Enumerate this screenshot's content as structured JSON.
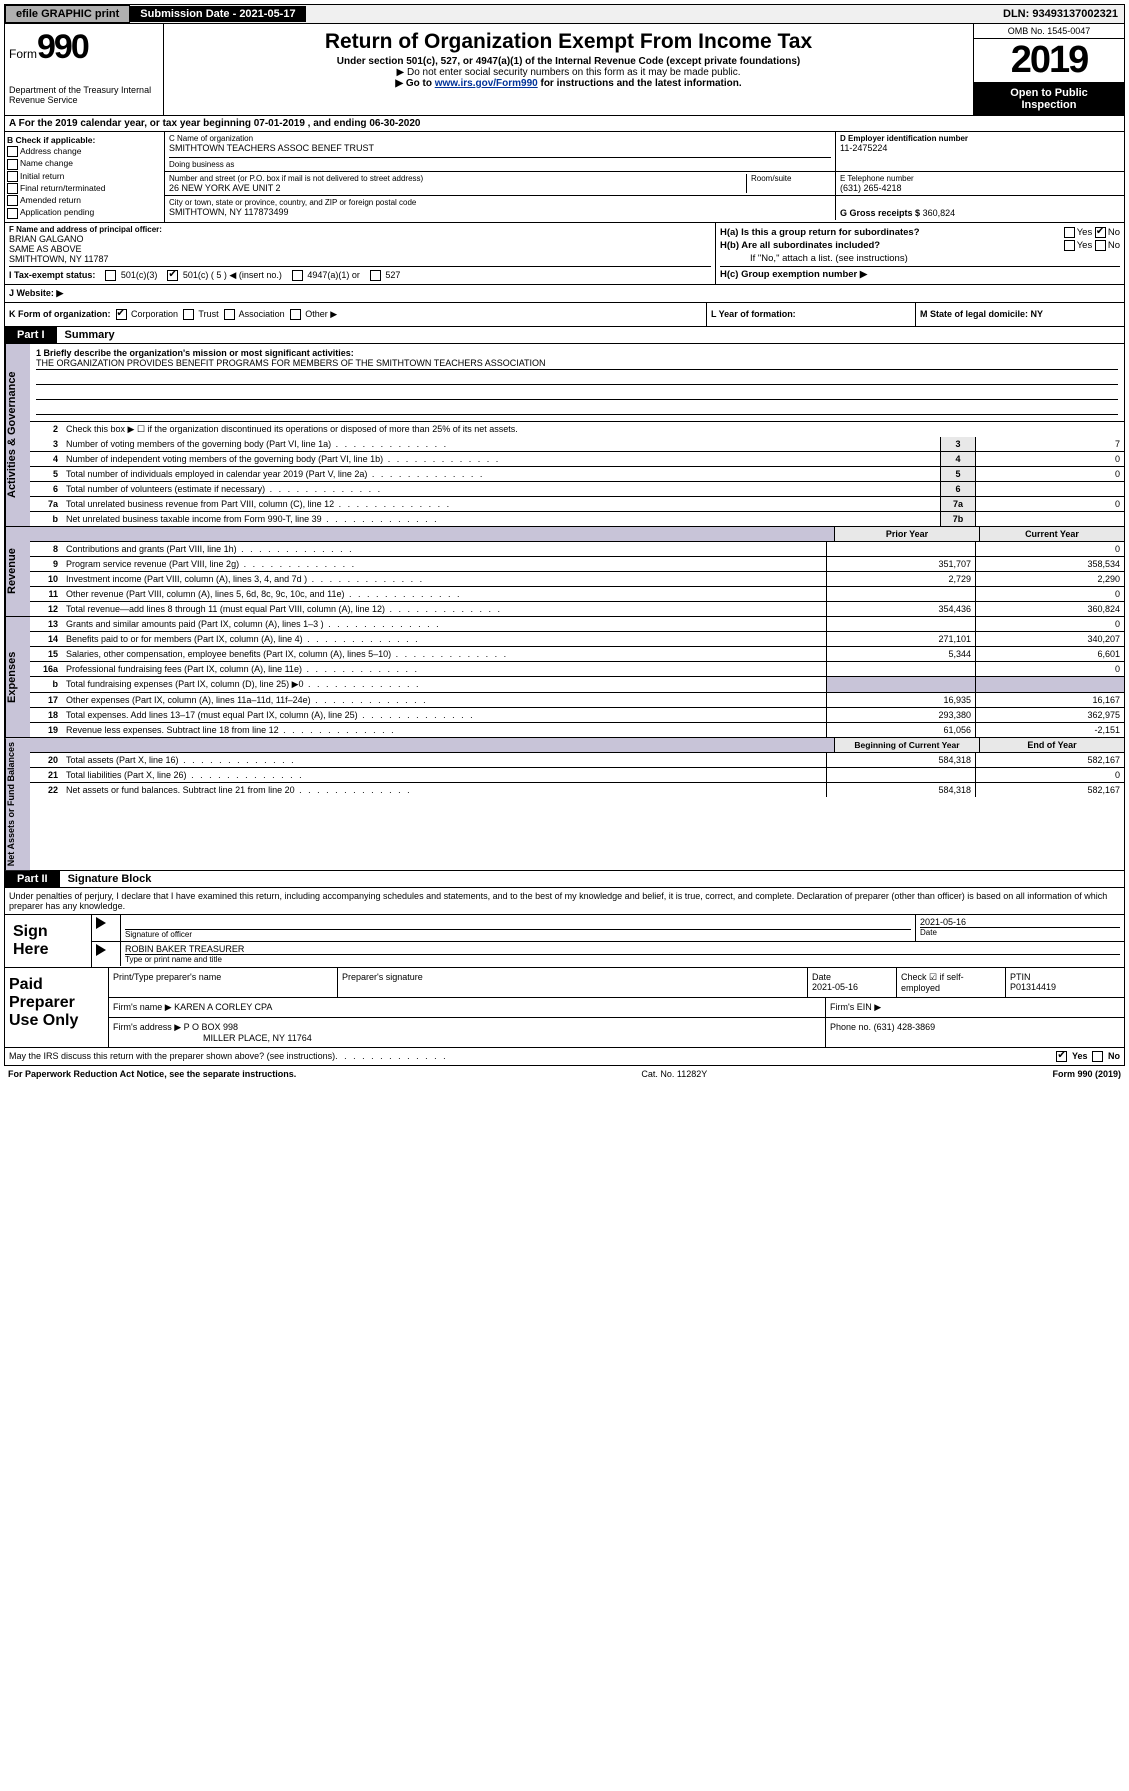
{
  "topbar": {
    "efile": "efile GRAPHIC print",
    "submission": "Submission Date - 2021-05-17",
    "dln": "DLN: 93493137002321"
  },
  "header": {
    "form_word": "Form",
    "form_num": "990",
    "dept": "Department of the Treasury Internal Revenue Service",
    "title": "Return of Organization Exempt From Income Tax",
    "sub1": "Under section 501(c), 527, or 4947(a)(1) of the Internal Revenue Code (except private foundations)",
    "sub2": "▶ Do not enter social security numbers on this form as it may be made public.",
    "sub3_pre": "▶ Go to ",
    "sub3_link": "www.irs.gov/Form990",
    "sub3_post": " for instructions and the latest information.",
    "omb": "OMB No. 1545-0047",
    "year": "2019",
    "open1": "Open to Public",
    "open2": "Inspection"
  },
  "row_a": "A For the 2019 calendar year, or tax year beginning 07-01-2019     , and ending 06-30-2020",
  "box_b": {
    "hdr": "B Check if applicable:",
    "items": [
      "Address change",
      "Name change",
      "Initial return",
      "Final return/terminated",
      "Amended return",
      "Application pending"
    ]
  },
  "box_c": {
    "name_lbl": "C Name of organization",
    "name": "SMITHTOWN TEACHERS ASSOC BENEF TRUST",
    "dba_lbl": "Doing business as",
    "addr_lbl": "Number and street (or P.O. box if mail is not delivered to street address)",
    "room_lbl": "Room/suite",
    "addr": "26 NEW YORK AVE UNIT 2",
    "city_lbl": "City or town, state or province, country, and ZIP or foreign postal code",
    "city": "SMITHTOWN, NY  117873499"
  },
  "box_d": {
    "lbl": "D Employer identification number",
    "val": "11-2475224"
  },
  "box_e": {
    "lbl": "E Telephone number",
    "val": "(631) 265-4218"
  },
  "box_g": {
    "lbl": "G Gross receipts $",
    "val": "360,824"
  },
  "box_f": {
    "lbl": "F  Name and address of principal officer:",
    "l1": "BRIAN GALGANO",
    "l2": "SAME AS ABOVE",
    "l3": "SMITHTOWN, NY  11787"
  },
  "box_h": {
    "a": "H(a)  Is this a group return for subordinates?",
    "b": "H(b)  Are all subordinates included?",
    "b2": "If \"No,\" attach a list. (see instructions)",
    "c": "H(c)  Group exemption number ▶",
    "yes": "Yes",
    "no": "No"
  },
  "row_i": {
    "lbl": "I    Tax-exempt status:",
    "o1": "501(c)(3)",
    "o2": "501(c) ( 5 ) ◀ (insert no.)",
    "o3": "4947(a)(1) or",
    "o4": "527"
  },
  "row_j": {
    "lbl": "J    Website: ▶"
  },
  "row_k": "K Form of organization:",
  "row_k_opts": [
    "Corporation",
    "Trust",
    "Association",
    "Other ▶"
  ],
  "row_l": "L Year of formation:",
  "row_m": "M State of legal domicile: NY",
  "part1": {
    "tab": "Part I",
    "title": "Summary"
  },
  "vtabs": {
    "ag": "Activities & Governance",
    "rev": "Revenue",
    "exp": "Expenses",
    "na": "Net Assets or Fund Balances"
  },
  "mission": {
    "lbl": "1  Briefly describe the organization's mission or most significant activities:",
    "text": "THE ORGANIZATION PROVIDES BENEFIT PROGRAMS FOR MEMBERS OF THE SMITHTOWN TEACHERS ASSOCIATION"
  },
  "lines_ag": [
    {
      "n": "2",
      "t": "Check this box ▶ ☐  if the organization discontinued its operations or disposed of more than 25% of its net assets."
    },
    {
      "n": "3",
      "t": "Number of voting members of the governing body (Part VI, line 1a)",
      "box": "3",
      "v": "7"
    },
    {
      "n": "4",
      "t": "Number of independent voting members of the governing body (Part VI, line 1b)",
      "box": "4",
      "v": "0"
    },
    {
      "n": "5",
      "t": "Total number of individuals employed in calendar year 2019 (Part V, line 2a)",
      "box": "5",
      "v": "0"
    },
    {
      "n": "6",
      "t": "Total number of volunteers (estimate if necessary)",
      "box": "6",
      "v": ""
    },
    {
      "n": "7a",
      "t": "Total unrelated business revenue from Part VIII, column (C), line 12",
      "box": "7a",
      "v": "0"
    },
    {
      "n": "b",
      "t": "Net unrelated business taxable income from Form 990-T, line 39",
      "box": "7b",
      "v": ""
    }
  ],
  "col_hdrs": {
    "py": "Prior Year",
    "cy": "Current Year"
  },
  "lines_rev": [
    {
      "n": "8",
      "t": "Contributions and grants (Part VIII, line 1h)",
      "py": "",
      "cy": "0"
    },
    {
      "n": "9",
      "t": "Program service revenue (Part VIII, line 2g)",
      "py": "351,707",
      "cy": "358,534"
    },
    {
      "n": "10",
      "t": "Investment income (Part VIII, column (A), lines 3, 4, and 7d )",
      "py": "2,729",
      "cy": "2,290"
    },
    {
      "n": "11",
      "t": "Other revenue (Part VIII, column (A), lines 5, 6d, 8c, 9c, 10c, and 11e)",
      "py": "",
      "cy": "0"
    },
    {
      "n": "12",
      "t": "Total revenue—add lines 8 through 11 (must equal Part VIII, column (A), line 12)",
      "py": "354,436",
      "cy": "360,824"
    }
  ],
  "lines_exp": [
    {
      "n": "13",
      "t": "Grants and similar amounts paid (Part IX, column (A), lines 1–3 )",
      "py": "",
      "cy": "0"
    },
    {
      "n": "14",
      "t": "Benefits paid to or for members (Part IX, column (A), line 4)",
      "py": "271,101",
      "cy": "340,207"
    },
    {
      "n": "15",
      "t": "Salaries, other compensation, employee benefits (Part IX, column (A), lines 5–10)",
      "py": "5,344",
      "cy": "6,601"
    },
    {
      "n": "16a",
      "t": "Professional fundraising fees (Part IX, column (A), line 11e)",
      "py": "",
      "cy": "0"
    },
    {
      "n": "b",
      "t": "Total fundraising expenses (Part IX, column (D), line 25) ▶0",
      "py": "GRAY",
      "cy": "GRAY"
    },
    {
      "n": "17",
      "t": "Other expenses (Part IX, column (A), lines 11a–11d, 11f–24e)",
      "py": "16,935",
      "cy": "16,167"
    },
    {
      "n": "18",
      "t": "Total expenses. Add lines 13–17 (must equal Part IX, column (A), line 25)",
      "py": "293,380",
      "cy": "362,975"
    },
    {
      "n": "19",
      "t": "Revenue less expenses. Subtract line 18 from line 12",
      "py": "61,056",
      "cy": "-2,151"
    }
  ],
  "col_hdrs2": {
    "py": "Beginning of Current Year",
    "cy": "End of Year"
  },
  "lines_na": [
    {
      "n": "20",
      "t": "Total assets (Part X, line 16)",
      "py": "584,318",
      "cy": "582,167"
    },
    {
      "n": "21",
      "t": "Total liabilities (Part X, line 26)",
      "py": "",
      "cy": "0"
    },
    {
      "n": "22",
      "t": "Net assets or fund balances. Subtract line 21 from line 20",
      "py": "584,318",
      "cy": "582,167"
    }
  ],
  "part2": {
    "tab": "Part II",
    "title": "Signature Block"
  },
  "sig": {
    "decl": "Under penalties of perjury, I declare that I have examined this return, including accompanying schedules and statements, and to the best of my knowledge and belief, it is true, correct, and complete. Declaration of preparer (other than officer) is based on all information of which preparer has any knowledge.",
    "here": "Sign Here",
    "so": "Signature of officer",
    "date": "2021-05-16",
    "date_lbl": "Date",
    "name": "ROBIN BAKER TREASURER",
    "name_lbl": "Type or print name and title"
  },
  "paid": {
    "lbl": "Paid Preparer Use Only",
    "h1": "Print/Type preparer's name",
    "h2": "Preparer's signature",
    "h3": "Date",
    "h3v": "2021-05-16",
    "h4": "Check ☑ if self-employed",
    "h5": "PTIN",
    "h5v": "P01314419",
    "firm_lbl": "Firm's name      ▶",
    "firm": "KAREN A CORLEY CPA",
    "ein_lbl": "Firm's EIN ▶",
    "addr_lbl": "Firm's address ▶",
    "addr1": "P O BOX 998",
    "addr2": "MILLER PLACE, NY  11764",
    "phone_lbl": "Phone no.",
    "phone": "(631) 428-3869"
  },
  "footer": {
    "q": "May the IRS discuss this return with the preparer shown above? (see instructions)",
    "yes": "Yes",
    "no": "No",
    "pra": "For Paperwork Reduction Act Notice, see the separate instructions.",
    "cat": "Cat. No. 11282Y",
    "form": "Form 990 (2019)"
  }
}
